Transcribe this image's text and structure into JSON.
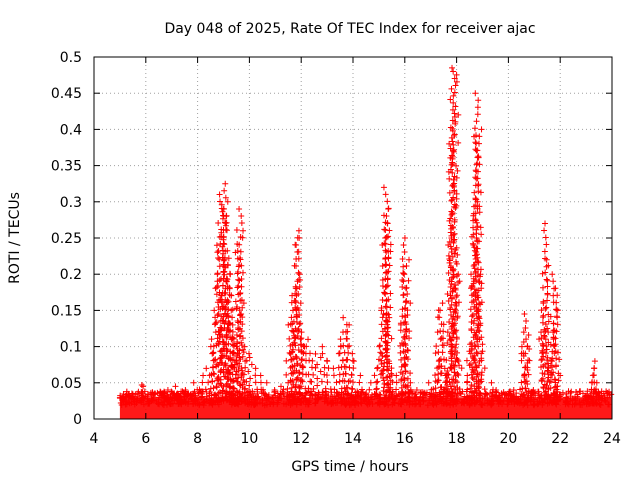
{
  "chart_data": {
    "type": "scatter",
    "title": "Day 048 of 2025, Rate Of TEC Index for receiver ajac",
    "xlabel": "GPS time / hours",
    "ylabel": "ROTI / TECUs",
    "xlim": [
      4,
      24
    ],
    "ylim": [
      0,
      0.5
    ],
    "x_ticks": [
      "4",
      "6",
      "8",
      "10",
      "12",
      "14",
      "16",
      "18",
      "20",
      "22",
      "24"
    ],
    "y_ticks": [
      "0",
      "0.05",
      "0.1",
      "0.15",
      "0.2",
      "0.25",
      "0.3",
      "0.35",
      "0.4",
      "0.45",
      "0.5"
    ],
    "grid": true,
    "marker": "+",
    "marker_color": "#ff0000",
    "baseline_band": [
      {
        "x_start": 5.0,
        "x_end": 24.0,
        "y_low": 0.0,
        "y_high": 0.03
      }
    ],
    "series": [
      {
        "values_description": "",
        "points": [
          [
            5.1,
            0.02
          ],
          [
            5.2,
            0.025
          ],
          [
            5.3,
            0.03
          ],
          [
            5.5,
            0.028
          ],
          [
            5.7,
            0.035
          ],
          [
            5.8,
            0.045
          ],
          [
            5.9,
            0.047
          ],
          [
            6.0,
            0.03
          ],
          [
            6.3,
            0.035
          ],
          [
            6.6,
            0.03
          ],
          [
            6.9,
            0.04
          ],
          [
            7.1,
            0.045
          ],
          [
            7.3,
            0.035
          ],
          [
            7.6,
            0.04
          ],
          [
            7.9,
            0.05
          ],
          [
            8.1,
            0.06
          ],
          [
            8.4,
            0.07
          ],
          [
            8.5,
            0.1
          ],
          [
            8.6,
            0.12
          ],
          [
            8.7,
            0.15
          ],
          [
            8.8,
            0.2
          ],
          [
            8.85,
            0.24
          ],
          [
            8.9,
            0.29
          ],
          [
            8.95,
            0.31
          ],
          [
            9.0,
            0.325
          ],
          [
            9.05,
            0.3
          ],
          [
            9.1,
            0.28
          ],
          [
            9.15,
            0.22
          ],
          [
            9.2,
            0.2
          ],
          [
            9.25,
            0.18
          ],
          [
            9.3,
            0.15
          ],
          [
            9.35,
            0.13
          ],
          [
            9.4,
            0.11
          ],
          [
            9.45,
            0.09
          ],
          [
            9.5,
            0.1
          ],
          [
            9.55,
            0.23
          ],
          [
            9.6,
            0.29
          ],
          [
            9.65,
            0.26
          ],
          [
            9.7,
            0.16
          ],
          [
            9.8,
            0.08
          ],
          [
            9.9,
            0.1
          ],
          [
            10.0,
            0.085
          ],
          [
            10.2,
            0.07
          ],
          [
            10.4,
            0.06
          ],
          [
            10.6,
            0.05
          ],
          [
            10.9,
            0.04
          ],
          [
            11.2,
            0.045
          ],
          [
            11.4,
            0.05
          ],
          [
            11.5,
            0.09
          ],
          [
            11.6,
            0.13
          ],
          [
            11.7,
            0.15
          ],
          [
            11.75,
            0.18
          ],
          [
            11.8,
            0.26
          ],
          [
            11.85,
            0.25
          ],
          [
            11.9,
            0.2
          ],
          [
            11.95,
            0.16
          ],
          [
            12.0,
            0.12
          ],
          [
            12.1,
            0.1
          ],
          [
            12.3,
            0.11
          ],
          [
            12.5,
            0.09
          ],
          [
            12.7,
            0.085
          ],
          [
            12.9,
            0.1
          ],
          [
            13.1,
            0.08
          ],
          [
            13.3,
            0.07
          ],
          [
            13.5,
            0.1
          ],
          [
            13.6,
            0.12
          ],
          [
            13.7,
            0.14
          ],
          [
            13.8,
            0.13
          ],
          [
            13.9,
            0.1
          ],
          [
            14.0,
            0.08
          ],
          [
            14.3,
            0.06
          ],
          [
            14.6,
            0.05
          ],
          [
            14.9,
            0.07
          ],
          [
            15.0,
            0.1
          ],
          [
            15.1,
            0.15
          ],
          [
            15.2,
            0.25
          ],
          [
            15.25,
            0.29
          ],
          [
            15.3,
            0.32
          ],
          [
            15.35,
            0.27
          ],
          [
            15.4,
            0.14
          ],
          [
            15.5,
            0.08
          ],
          [
            15.7,
            0.06
          ],
          [
            15.9,
            0.13
          ],
          [
            15.95,
            0.2
          ],
          [
            16.0,
            0.25
          ],
          [
            16.05,
            0.22
          ],
          [
            16.1,
            0.16
          ],
          [
            16.2,
            0.05
          ],
          [
            16.5,
            0.04
          ],
          [
            16.8,
            0.035
          ],
          [
            17.0,
            0.05
          ],
          [
            17.2,
            0.08
          ],
          [
            17.3,
            0.12
          ],
          [
            17.35,
            0.16
          ],
          [
            17.4,
            0.15
          ],
          [
            17.5,
            0.07
          ],
          [
            17.6,
            0.06
          ],
          [
            17.7,
            0.12
          ],
          [
            17.75,
            0.25
          ],
          [
            17.8,
            0.38
          ],
          [
            17.85,
            0.48
          ],
          [
            17.9,
            0.485
          ],
          [
            17.95,
            0.42
          ],
          [
            18.0,
            0.2
          ],
          [
            18.1,
            0.08
          ],
          [
            18.3,
            0.06
          ],
          [
            18.5,
            0.1
          ],
          [
            18.6,
            0.2
          ],
          [
            18.65,
            0.25
          ],
          [
            18.7,
            0.3
          ],
          [
            18.75,
            0.39
          ],
          [
            18.8,
            0.45
          ],
          [
            18.85,
            0.4
          ],
          [
            18.9,
            0.2
          ],
          [
            19.0,
            0.08
          ],
          [
            19.3,
            0.05
          ],
          [
            19.6,
            0.04
          ],
          [
            19.9,
            0.035
          ],
          [
            20.2,
            0.04
          ],
          [
            20.5,
            0.06
          ],
          [
            20.6,
            0.1
          ],
          [
            20.65,
            0.12
          ],
          [
            20.7,
            0.145
          ],
          [
            20.75,
            0.1
          ],
          [
            20.9,
            0.04
          ],
          [
            21.1,
            0.03
          ],
          [
            21.3,
            0.12
          ],
          [
            21.35,
            0.16
          ],
          [
            21.4,
            0.22
          ],
          [
            21.45,
            0.27
          ],
          [
            21.5,
            0.12
          ],
          [
            21.6,
            0.08
          ],
          [
            21.7,
            0.12
          ],
          [
            21.75,
            0.18
          ],
          [
            21.8,
            0.2
          ],
          [
            21.85,
            0.15
          ],
          [
            21.9,
            0.06
          ],
          [
            22.2,
            0.03
          ],
          [
            22.5,
            0.02
          ],
          [
            22.8,
            0.025
          ],
          [
            23.1,
            0.03
          ],
          [
            23.2,
            0.05
          ],
          [
            23.25,
            0.07
          ],
          [
            23.3,
            0.08
          ],
          [
            23.4,
            0.05
          ],
          [
            23.6,
            0.03
          ],
          [
            23.8,
            0.02
          ],
          [
            24.0,
            0.01
          ]
        ]
      }
    ]
  }
}
